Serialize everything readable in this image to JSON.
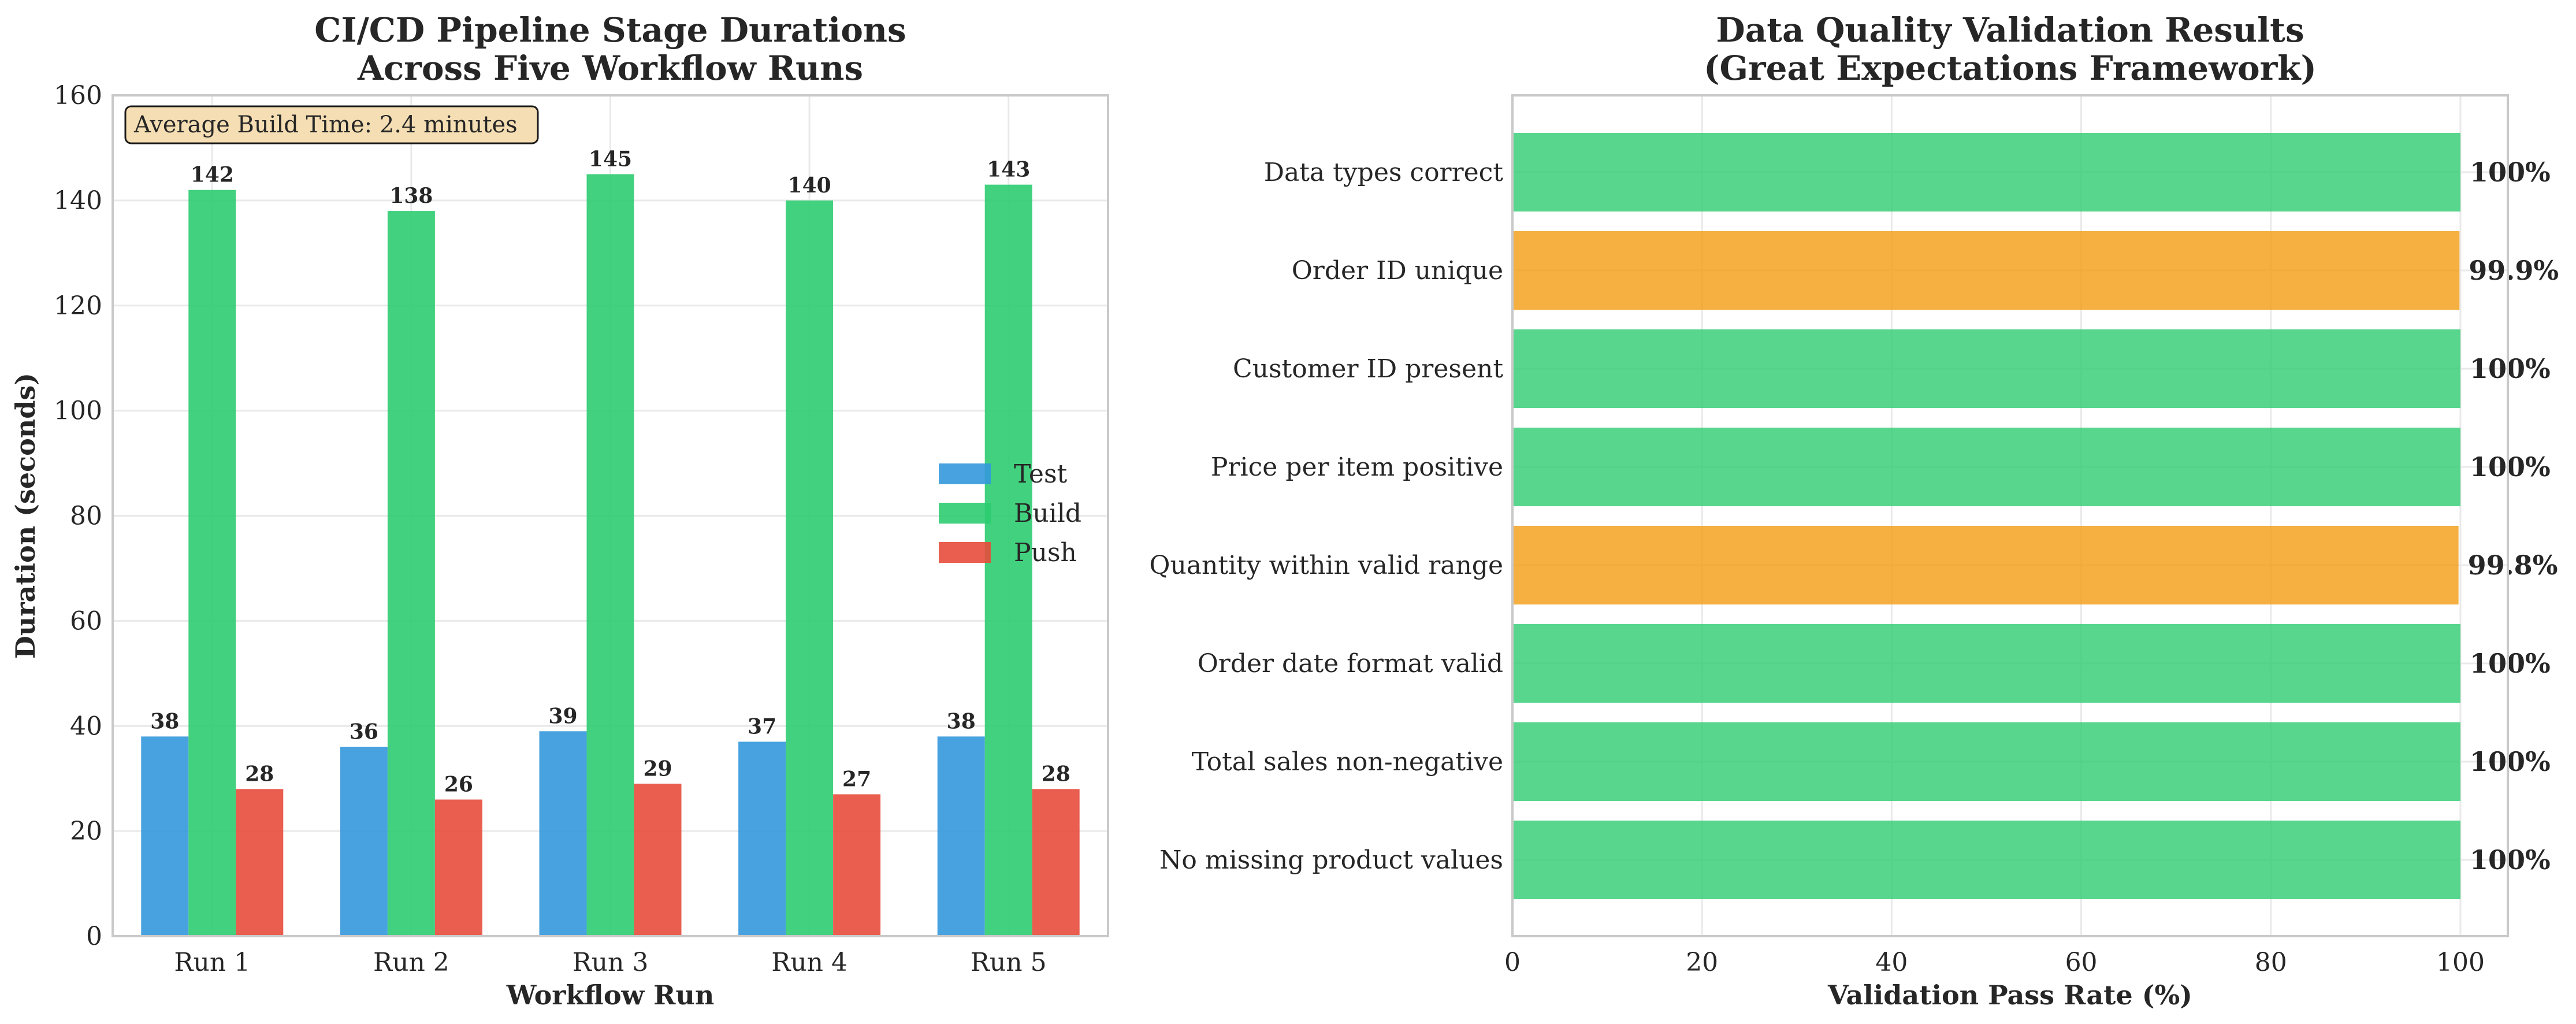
{
  "chart_data": [
    {
      "type": "bar",
      "title": "CI/CD Pipeline Stage Durations\nAcross Five Workflow Runs",
      "xlabel": "Workflow Run",
      "ylabel": "Duration (seconds)",
      "categories": [
        "Run 1",
        "Run 2",
        "Run 3",
        "Run 4",
        "Run 5"
      ],
      "series": [
        {
          "name": "Test",
          "color": "#3498db",
          "values": [
            38,
            36,
            39,
            37,
            38
          ]
        },
        {
          "name": "Build",
          "color": "#2ecc71",
          "values": [
            142,
            138,
            145,
            140,
            143
          ]
        },
        {
          "name": "Push",
          "color": "#e74c3c",
          "values": [
            28,
            26,
            29,
            27,
            28
          ]
        }
      ],
      "ylim": [
        0,
        160
      ],
      "yticks": [
        0,
        20,
        40,
        60,
        80,
        100,
        120,
        140,
        160
      ],
      "grid": true,
      "legend_placement": "center-right",
      "annotation": "Average Build Time: 2.4 minutes",
      "annotation_bg": "#f5deb3"
    },
    {
      "type": "bar",
      "orientation": "horizontal",
      "title": "Data Quality Validation Results\n(Great Expectations Framework)",
      "xlabel": "Validation Pass Rate (%)",
      "ylabel": "",
      "categories": [
        "Data types correct",
        "Order ID unique",
        "Customer ID present",
        "Price per item positive",
        "Quantity within valid range",
        "Order date format valid",
        "Total sales non-negative",
        "No missing product values"
      ],
      "values": [
        100,
        99.9,
        100,
        100,
        99.8,
        100,
        100,
        100
      ],
      "value_labels": [
        "100%",
        "99.9%",
        "100%",
        "100%",
        "99.8%",
        "100%",
        "100%",
        "100%"
      ],
      "bar_colors": [
        "#2ecc71",
        "#f39c12",
        "#2ecc71",
        "#2ecc71",
        "#f39c12",
        "#2ecc71",
        "#2ecc71",
        "#2ecc71"
      ],
      "xlim": [
        0,
        105
      ],
      "xticks": [
        0,
        20,
        40,
        60,
        80,
        100
      ],
      "grid": true
    }
  ]
}
